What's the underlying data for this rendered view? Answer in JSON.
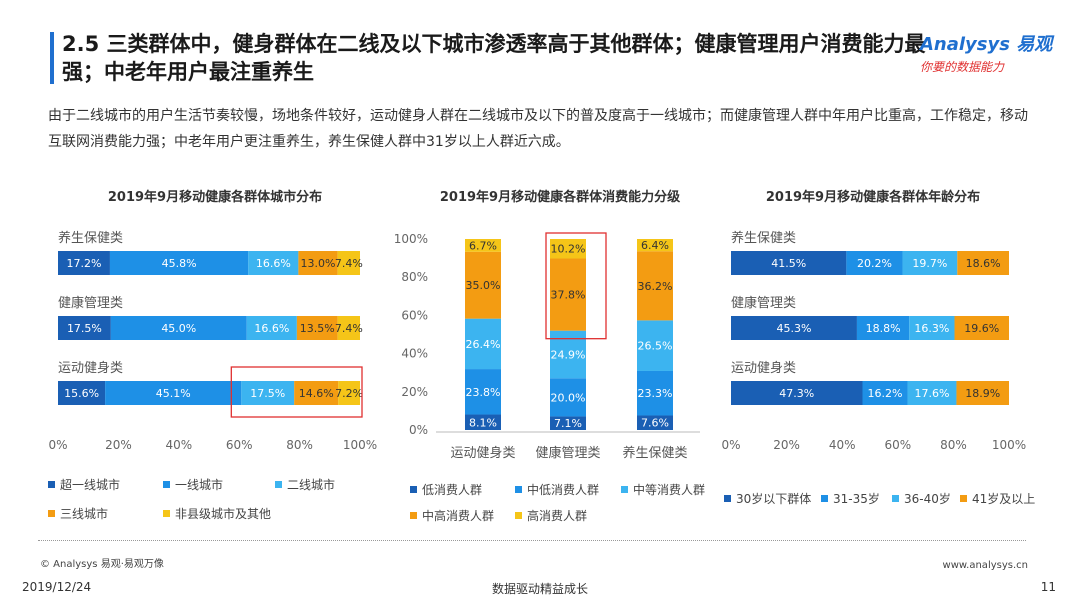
{
  "header": {
    "title": "2.5 三类群体中，健身群体在二线及以下城市渗透率高于其他群体；健康管理用户消费能力最强；中老年用户最注重养生",
    "logo_brand": "Analysys 易观",
    "logo_slogan": "你要的数据能力"
  },
  "description": "由于二线城市的用户生活节奏较慢，场地条件较好，运动健身人群在二线城市及以下的普及度高于一线城市；而健康管理人群中年用户比重高，工作稳定，移动互联网消费能力强；中老年用户更注重养生，养生保健人群中31岁以上人群近六成。",
  "colors": {
    "accent": "#1f6fcf",
    "highlight_box": "#e03030",
    "seg1": "#1a5fb4",
    "seg2": "#1e90e6",
    "seg3": "#3cb4f0",
    "seg4": "#f39c12",
    "seg5": "#f5c518"
  },
  "chart_data": [
    {
      "type": "bar",
      "orientation": "horizontal-stacked",
      "title": "2019年9月移动健康各群体城市分布",
      "categories": [
        "养生保健类",
        "健康管理类",
        "运动健身类"
      ],
      "series": [
        {
          "name": "超一线城市",
          "values": [
            17.2,
            17.5,
            15.6
          ]
        },
        {
          "name": "一线城市",
          "values": [
            45.8,
            45.0,
            45.1
          ]
        },
        {
          "name": "二线城市",
          "values": [
            16.6,
            16.6,
            17.5
          ]
        },
        {
          "name": "三线城市",
          "values": [
            13.0,
            13.5,
            14.6
          ]
        },
        {
          "name": "非县级城市及其他",
          "values": [
            7.4,
            7.4,
            7.2
          ]
        }
      ],
      "value_labels": [
        [
          "17.2%",
          "45.8%",
          "16.6%",
          "13.0%",
          "7.4%"
        ],
        [
          "17.5%",
          "45.0%",
          "16.6%",
          "13.5%",
          "7.4%"
        ],
        [
          "15.6%",
          "45.1%",
          "17.5%",
          "14.6%",
          "7.2%"
        ]
      ],
      "xticks": [
        "0%",
        "20%",
        "40%",
        "60%",
        "80%",
        "100%"
      ],
      "xlim": [
        0,
        100
      ],
      "highlight": {
        "category": "运动健身类",
        "series": [
          "二线城市",
          "三线城市",
          "非县级城市及其他"
        ]
      }
    },
    {
      "type": "bar",
      "orientation": "vertical-stacked",
      "title": "2019年9月移动健康各群体消费能力分级",
      "categories": [
        "运动健身类",
        "健康管理类",
        "养生保健类"
      ],
      "series": [
        {
          "name": "低消费人群",
          "values": [
            8.1,
            7.1,
            7.6
          ]
        },
        {
          "name": "中低消费人群",
          "values": [
            23.8,
            20.0,
            23.3
          ]
        },
        {
          "name": "中等消费人群",
          "values": [
            26.4,
            24.9,
            26.5
          ]
        },
        {
          "name": "中高消费人群",
          "values": [
            35.0,
            37.8,
            36.2
          ]
        },
        {
          "name": "高消费人群",
          "values": [
            6.7,
            10.2,
            6.4
          ]
        }
      ],
      "value_labels": [
        [
          "8.1%",
          "23.8%",
          "26.4%",
          "35.0%",
          "6.7%"
        ],
        [
          "7.1%",
          "20.0%",
          "24.9%",
          "37.8%",
          "10.2%"
        ],
        [
          "7.6%",
          "23.3%",
          "26.5%",
          "36.2%",
          "6.4%"
        ]
      ],
      "yticks": [
        "0%",
        "20%",
        "40%",
        "60%",
        "80%",
        "100%"
      ],
      "ylim": [
        0,
        100
      ],
      "highlight": {
        "category": "健康管理类",
        "series": [
          "中高消费人群",
          "高消费人群"
        ]
      }
    },
    {
      "type": "bar",
      "orientation": "horizontal-stacked",
      "title": "2019年9月移动健康各群体年龄分布",
      "categories": [
        "养生保健类",
        "健康管理类",
        "运动健身类"
      ],
      "series": [
        {
          "name": "30岁以下群体",
          "values": [
            41.5,
            45.3,
            47.3
          ]
        },
        {
          "name": "31-35岁",
          "values": [
            20.2,
            18.8,
            16.2
          ]
        },
        {
          "name": "36-40岁",
          "values": [
            19.7,
            16.3,
            17.6
          ]
        },
        {
          "name": "41岁及以上",
          "values": [
            18.6,
            19.6,
            18.9
          ]
        }
      ],
      "value_labels": [
        [
          "41.5%",
          "20.2%",
          "19.7%",
          "18.6%"
        ],
        [
          "45.3%",
          "18.8%",
          "16.3%",
          "19.6%"
        ],
        [
          "47.3%",
          "16.2%",
          "17.6%",
          "18.9%"
        ]
      ],
      "xticks": [
        "0%",
        "20%",
        "40%",
        "60%",
        "80%",
        "100%"
      ],
      "xlim": [
        0,
        100
      ]
    }
  ],
  "footer": {
    "source": "© Analysys 易观·易观万像",
    "site": "www.analysys.cn",
    "date": "2019/12/24",
    "slogan": "数据驱动精益成长",
    "page": "11"
  }
}
